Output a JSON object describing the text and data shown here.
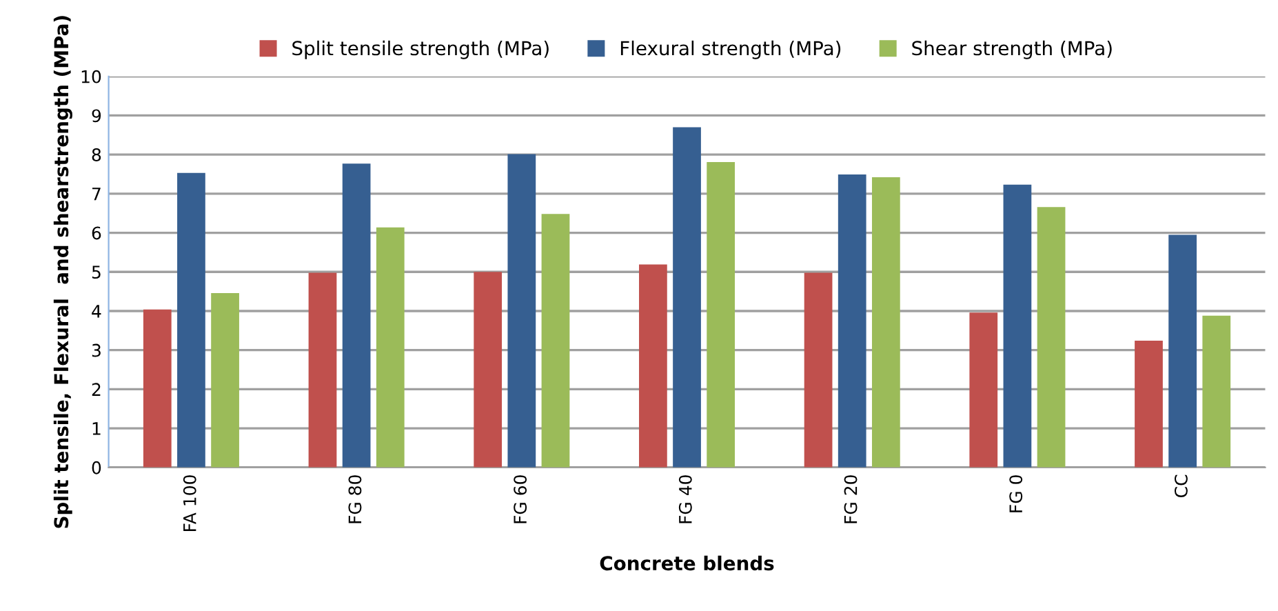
{
  "chart_data": {
    "type": "bar",
    "xlabel": "Concrete blends",
    "ylabel": "Split tensile, Flexural  and shearstrength (MPa)",
    "categories": [
      "FA 100",
      "FG 80",
      "FG 60",
      "FG 40",
      "FG 20",
      "FG 0",
      "CC"
    ],
    "series": [
      {
        "name": "Split tensile strength (MPa)",
        "color": "#c0504d",
        "values": [
          4.04,
          4.98,
          5.0,
          5.19,
          4.98,
          3.96,
          3.24
        ]
      },
      {
        "name": "Flexural strength (MPa)",
        "color": "#365f91",
        "values": [
          7.53,
          7.77,
          8.01,
          8.7,
          7.49,
          7.23,
          5.95
        ]
      },
      {
        "name": "Shear strength (MPa)",
        "color": "#9bbb59",
        "values": [
          4.46,
          6.14,
          6.48,
          7.81,
          7.42,
          6.66,
          3.88
        ]
      }
    ],
    "ylim": [
      0,
      10
    ],
    "yticks": [
      0,
      1,
      2,
      3,
      4,
      5,
      6,
      7,
      8,
      9,
      10
    ],
    "grid": "y",
    "legend": "top"
  }
}
